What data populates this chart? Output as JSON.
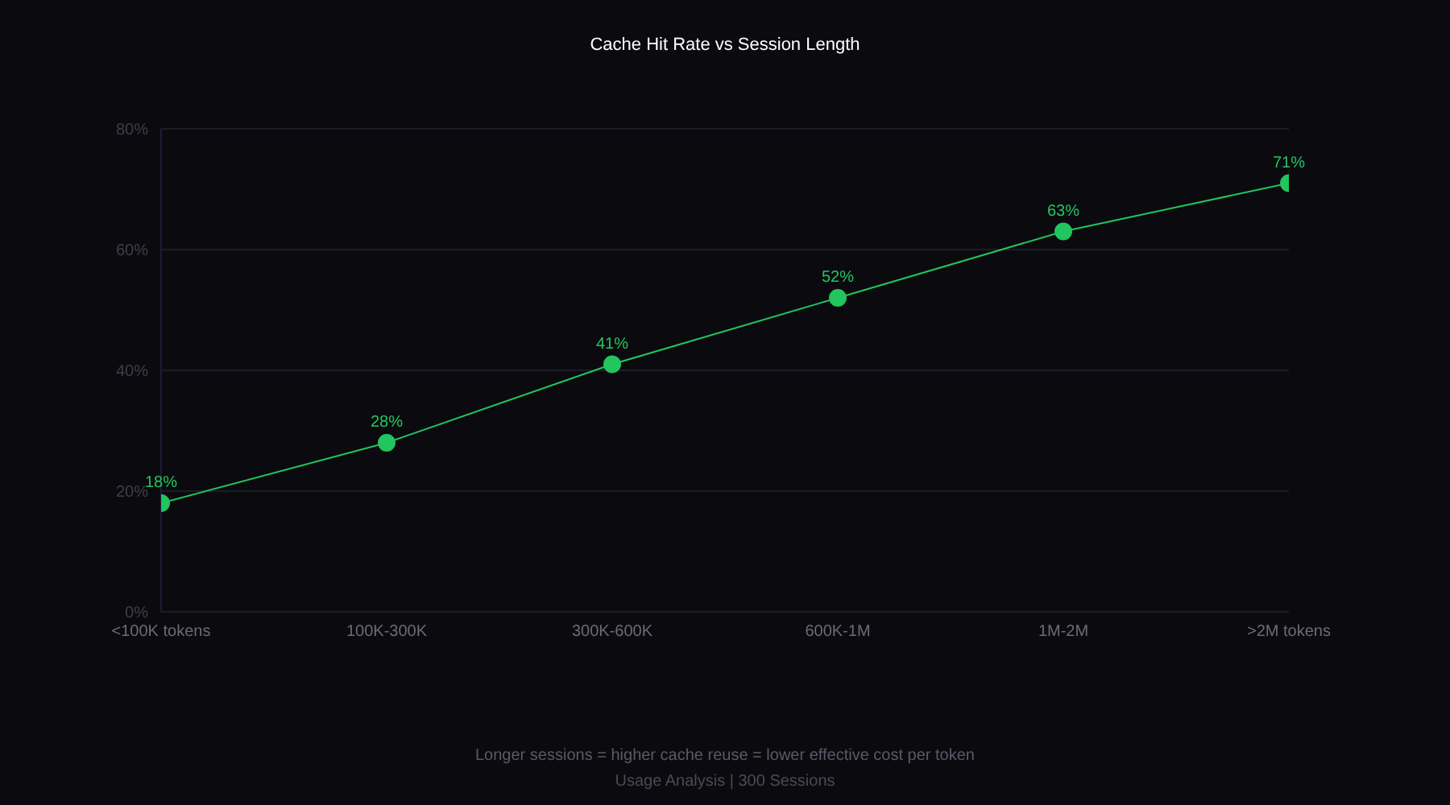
{
  "chart_data": {
    "type": "line",
    "title": "Cache Hit Rate vs Session Length",
    "categories": [
      "<100K tokens",
      "100K-300K",
      "300K-600K",
      "600K-1M",
      "1M-2M",
      ">2M tokens"
    ],
    "series": [
      {
        "color": "#22c55e",
        "values": [
          18,
          28,
          41,
          52,
          63,
          71
        ],
        "value_labels": [
          "18%",
          "28%",
          "41%",
          "52%",
          "63%",
          "71%"
        ]
      }
    ],
    "ylim": [
      0,
      80
    ],
    "yticks": [
      {
        "value": 0,
        "label": "0%"
      },
      {
        "value": 20,
        "label": "20%"
      },
      {
        "value": 40,
        "label": "40%"
      },
      {
        "value": 60,
        "label": "60%"
      },
      {
        "value": 80,
        "label": "80%"
      }
    ],
    "grid": "y",
    "marker": "circle",
    "line_style": "solid",
    "annotations": [
      "Longer sessions = higher cache reuse = lower effective cost per token",
      "Usage Analysis | 300 Sessions"
    ]
  }
}
